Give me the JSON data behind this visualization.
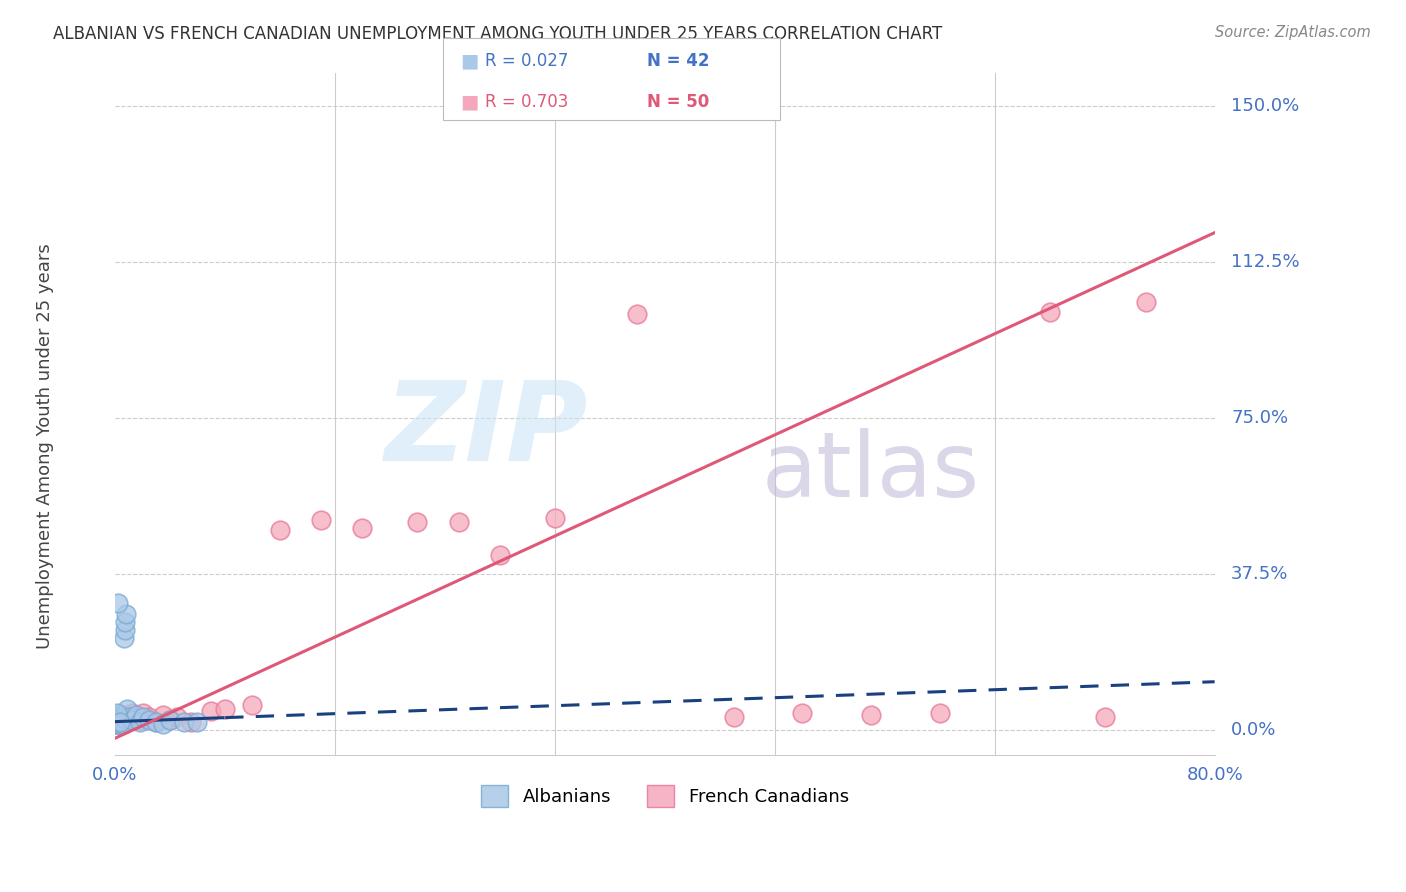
{
  "title": "ALBANIAN VS FRENCH CANADIAN UNEMPLOYMENT AMONG YOUTH UNDER 25 YEARS CORRELATION CHART",
  "source": "Source: ZipAtlas.com",
  "ylabel": "Unemployment Among Youth under 25 years",
  "ytick_labels": [
    "0.0%",
    "37.5%",
    "75.0%",
    "112.5%",
    "150.0%"
  ],
  "ytick_values": [
    0.0,
    37.5,
    75.0,
    112.5,
    150.0
  ],
  "xtick_labels": [
    "0.0%",
    "80.0%"
  ],
  "xmin": 0.0,
  "xmax": 80.0,
  "ymin": -6.0,
  "ymax": 158.0,
  "r_albanian": "0.027",
  "n_albanian": "42",
  "r_fc": "0.703",
  "n_fc": "50",
  "albanians_label": "Albanians",
  "fc_label": "French Canadians",
  "albanians_fill": "#aac8e8",
  "albanians_edge": "#7aaad0",
  "fc_fill": "#f5a8bc",
  "fc_edge": "#e87898",
  "albanian_line_color": "#1a4080",
  "french_line_color": "#e05878",
  "grid_color": "#cccccc",
  "title_color": "#333333",
  "source_color": "#888888",
  "axis_label_color": "#4472c4",
  "alb_x": [
    0.05,
    0.08,
    0.1,
    0.12,
    0.15,
    0.18,
    0.2,
    0.22,
    0.25,
    0.28,
    0.3,
    0.32,
    0.35,
    0.38,
    0.4,
    0.42,
    0.45,
    0.48,
    0.5,
    0.52,
    0.55,
    0.58,
    0.6,
    0.65,
    0.7,
    0.75,
    0.8,
    0.9,
    1.0,
    1.2,
    1.5,
    1.8,
    2.0,
    2.5,
    3.0,
    3.5,
    4.0,
    5.0,
    6.0,
    0.15,
    0.25,
    0.35
  ],
  "alb_y": [
    2.5,
    3.0,
    2.0,
    1.5,
    3.5,
    2.0,
    2.5,
    1.8,
    3.0,
    2.2,
    2.8,
    1.5,
    2.0,
    3.5,
    2.5,
    2.0,
    3.0,
    1.8,
    2.5,
    3.0,
    2.0,
    1.5,
    2.8,
    22.0,
    24.0,
    26.0,
    28.0,
    5.0,
    3.0,
    2.5,
    3.5,
    2.0,
    3.0,
    2.5,
    2.0,
    1.5,
    2.5,
    2.0,
    1.8,
    4.0,
    30.5,
    2.0
  ],
  "fc_x": [
    0.05,
    0.08,
    0.1,
    0.12,
    0.15,
    0.18,
    0.2,
    0.22,
    0.25,
    0.28,
    0.3,
    0.35,
    0.4,
    0.45,
    0.5,
    0.55,
    0.6,
    0.65,
    0.7,
    0.8,
    0.9,
    1.0,
    1.2,
    1.5,
    1.8,
    2.0,
    2.5,
    3.0,
    3.5,
    4.0,
    4.5,
    5.5,
    7.0,
    8.0,
    10.0,
    12.0,
    15.0,
    18.0,
    22.0,
    25.0,
    28.0,
    32.0,
    38.0,
    45.0,
    50.0,
    55.0,
    60.0,
    68.0,
    72.0,
    75.0
  ],
  "fc_y": [
    2.0,
    1.5,
    2.5,
    3.0,
    2.0,
    1.5,
    2.5,
    3.0,
    2.0,
    2.5,
    3.0,
    2.0,
    1.5,
    2.5,
    3.0,
    2.0,
    1.5,
    2.5,
    3.0,
    2.0,
    3.5,
    2.5,
    4.0,
    3.0,
    2.5,
    4.0,
    3.0,
    2.0,
    3.5,
    2.5,
    3.0,
    2.0,
    4.5,
    5.0,
    6.0,
    48.0,
    50.5,
    48.5,
    50.0,
    50.0,
    42.0,
    51.0,
    100.0,
    3.0,
    4.0,
    3.5,
    4.0,
    100.5,
    3.0,
    103.0
  ]
}
